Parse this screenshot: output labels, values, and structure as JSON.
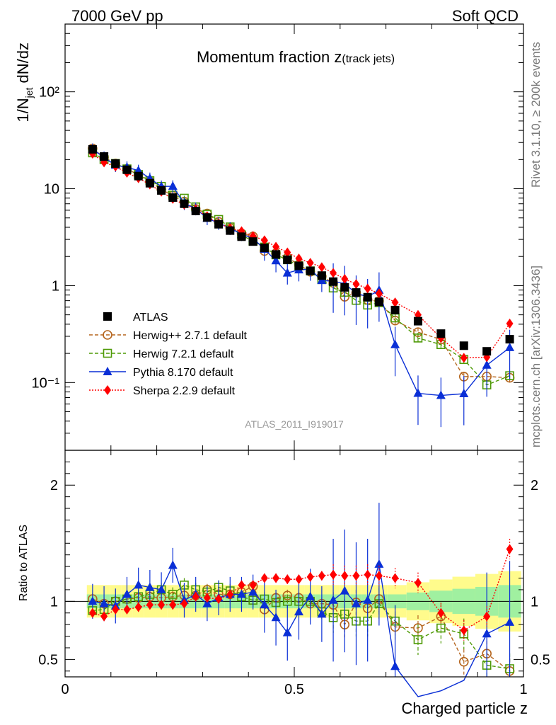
{
  "header": {
    "left": "7000 GeV pp",
    "right": "Soft QCD"
  },
  "side_labels": {
    "rivet": "Rivet 3.1.10, ≥ 200k events",
    "mcplots": "mcplots.cern.ch [arXiv:1306.3436]"
  },
  "colors": {
    "atlas": "#000000",
    "herwigpp": "#b5651d",
    "herwig7": "#4e9a06",
    "pythia": "#0a2fd6",
    "sherpa": "#ff0000",
    "band_inner": "#a0f0a0",
    "band_outer": "#fffb8c"
  },
  "chart_data": {
    "type": "line",
    "title": "Momentum fraction",
    "title_symbol": "z",
    "title_subscript": "(track jets)",
    "xlabel": "Charged particle z",
    "ylabel": "1/N",
    "ylabel_sub": "jet",
    "ylabel_tail": " dN/dz",
    "ratio_ylabel": "Ratio to ATLAS",
    "watermark": "ATLAS_2011_I919017",
    "xlim": [
      0,
      1
    ],
    "ylim": [
      0.02,
      500
    ],
    "ratio_ylim": [
      0.35,
      2.3
    ],
    "yscale": "log",
    "x_ticks": [
      "0",
      "0.5",
      "1"
    ],
    "y_ticks": [
      "10⁻¹",
      "1",
      "10",
      "10²"
    ],
    "ratio_ticks": [
      "0.5",
      "1",
      "2"
    ],
    "x": [
      0.06,
      0.085,
      0.11,
      0.135,
      0.16,
      0.185,
      0.21,
      0.235,
      0.26,
      0.285,
      0.31,
      0.335,
      0.36,
      0.385,
      0.41,
      0.435,
      0.46,
      0.485,
      0.51,
      0.535,
      0.56,
      0.585,
      0.61,
      0.635,
      0.66,
      0.685,
      0.72,
      0.77,
      0.82,
      0.87,
      0.92,
      0.97
    ],
    "series": [
      {
        "name": "ATLAS",
        "key": "atlas",
        "marker": "square",
        "values": [
          25.5,
          21.5,
          18.2,
          15.7,
          13.5,
          11.4,
          9.6,
          8.1,
          7.0,
          5.9,
          5.05,
          4.3,
          3.7,
          3.2,
          2.85,
          2.45,
          2.1,
          1.85,
          1.6,
          1.42,
          1.27,
          1.1,
          0.96,
          0.85,
          0.76,
          0.68,
          0.56,
          0.43,
          0.32,
          0.24,
          0.21,
          0.28
        ],
        "band_inner": 0.06,
        "band_outer": 0.14
      },
      {
        "name": "Herwig++ 2.7.1 default",
        "key": "herwigpp",
        "marker": "circle-open",
        "ratio": [
          1.02,
          0.98,
          1.0,
          1.02,
          1.03,
          1.04,
          1.03,
          1.04,
          1.05,
          1.05,
          1.1,
          1.06,
          1.06,
          1.08,
          1.13,
          0.93,
          1.03,
          1.05,
          1.03,
          0.98,
          0.98,
          0.97,
          0.8,
          0.99,
          0.94,
          1.02,
          0.78,
          0.77,
          0.87,
          0.48,
          0.55,
          0.4
        ]
      },
      {
        "name": "Herwig 7.2.1 default",
        "key": "herwig7",
        "marker": "square-open",
        "ratio": [
          0.92,
          0.93,
          1.0,
          1.02,
          1.04,
          1.06,
          1.1,
          1.06,
          1.14,
          1.1,
          1.08,
          1.12,
          1.09,
          1.04,
          1.01,
          1.02,
          0.99,
          1.0,
          1.0,
          1.0,
          0.91,
          0.86,
          0.89,
          0.83,
          0.83,
          0.98,
          0.83,
          0.67,
          0.77,
          0.72,
          0.45,
          0.42
        ]
      },
      {
        "name": "Pythia 8.170 default",
        "key": "pythia",
        "marker": "triangle",
        "ratio": [
          1.0,
          0.98,
          0.96,
          1.06,
          1.14,
          1.12,
          1.1,
          1.31,
          1.01,
          1.06,
          0.98,
          1.03,
          1.06,
          1.06,
          1.08,
          0.97,
          0.86,
          0.73,
          0.91,
          1.04,
          0.89,
          1.01,
          1.09,
          0.98,
          1.01,
          1.32,
          0.44,
          0.18,
          0.23,
          0.32,
          0.72,
          0.82
        ]
      },
      {
        "name": "Sherpa 2.2.9 default",
        "key": "sherpa",
        "marker": "diamond",
        "ratio": [
          0.9,
          0.87,
          0.93,
          0.93,
          0.95,
          0.97,
          0.97,
          0.97,
          0.98,
          1.04,
          1.03,
          1.02,
          1.06,
          1.14,
          1.14,
          1.2,
          1.2,
          1.19,
          1.19,
          1.21,
          1.22,
          1.23,
          1.22,
          1.22,
          1.23,
          1.22,
          1.2,
          1.16,
          0.9,
          0.75,
          0.87,
          1.45
        ]
      }
    ],
    "legend_position": "lower-left"
  }
}
